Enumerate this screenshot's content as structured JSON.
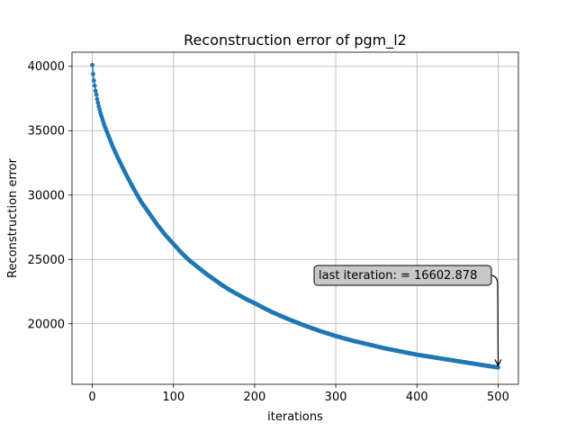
{
  "chart_data": {
    "type": "line",
    "title": "Reconstruction error of pgm_l2",
    "xlabel": "iterations",
    "ylabel": "Reconstruction error",
    "xlim": [
      -25,
      525
    ],
    "ylim": [
      15300,
      41100
    ],
    "xticks": [
      0,
      100,
      200,
      300,
      400,
      500
    ],
    "yticks": [
      20000,
      25000,
      30000,
      35000,
      40000
    ],
    "xtick_labels": [
      "0",
      "100",
      "200",
      "300",
      "400",
      "500"
    ],
    "ytick_labels": [
      "20000",
      "25000",
      "30000",
      "35000",
      "40000"
    ],
    "grid": true,
    "series": [
      {
        "marker": "circle",
        "color": "#1f77b4",
        "x": [
          0,
          1,
          2,
          3,
          4,
          5,
          6,
          8,
          10,
          12,
          15,
          20,
          25,
          30,
          35,
          40,
          50,
          60,
          70,
          80,
          90,
          100,
          110,
          120,
          130,
          140,
          150,
          160,
          170,
          180,
          190,
          200,
          220,
          240,
          260,
          280,
          300,
          320,
          340,
          360,
          380,
          400,
          420,
          440,
          460,
          480,
          500
        ],
        "y": [
          40100,
          39400,
          38900,
          38500,
          38100,
          37800,
          37450,
          36900,
          36400,
          36000,
          35400,
          34600,
          33800,
          33100,
          32450,
          31800,
          30600,
          29500,
          28600,
          27700,
          26900,
          26200,
          25500,
          24900,
          24400,
          23900,
          23450,
          23000,
          22600,
          22250,
          21900,
          21600,
          20950,
          20400,
          19900,
          19450,
          19050,
          18700,
          18400,
          18100,
          17850,
          17600,
          17400,
          17200,
          17000,
          16800,
          16603
        ]
      }
    ],
    "annotation": {
      "text": "last iteration: = 16602.878",
      "x": 500,
      "y": 16602.878,
      "box_fill": "#c8c8c8",
      "arrow": true
    }
  }
}
